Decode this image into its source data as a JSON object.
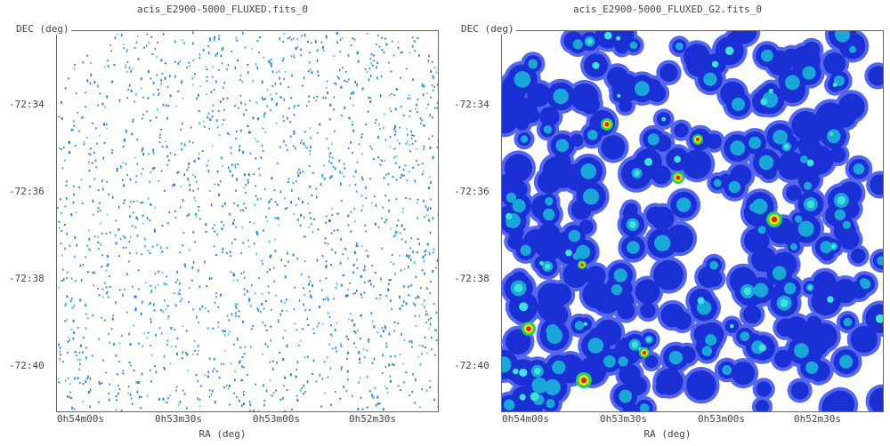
{
  "panels": [
    {
      "title": "acis_E2900-5000_FLUXED.fits_0",
      "y_axis_label": "DEC (deg)",
      "x_axis_label": "RA (deg)",
      "y_ticks": [
        "-72:34",
        "-72:36",
        "-72:38",
        "-72:40"
      ],
      "x_ticks": [
        "0h54m00s",
        "0h53m30s",
        "0h53m00s",
        "0h52m30s"
      ]
    },
    {
      "title": "acis_E2900-5000_FLUXED_G2.fits_0",
      "y_axis_label": "DEC (deg)",
      "x_axis_label": "RA (deg)",
      "y_ticks": [
        "-72:34",
        "-72:36",
        "-72:38",
        "-72:40"
      ],
      "x_ticks": [
        "0h54m00s",
        "0h53m30s",
        "0h53m00s",
        "0h52m30s"
      ]
    }
  ],
  "colors": {
    "photon_dot": "#2a86d6",
    "photon_dot_faint": "#55c7e8",
    "smooth_outer": "#5566ee",
    "smooth_mid": "#1a2fd4",
    "smooth_inner": "#1aa6d8",
    "smooth_core": "#3fe0e0",
    "source_ring": "#e6e600",
    "source_center": "#dd2222"
  }
}
